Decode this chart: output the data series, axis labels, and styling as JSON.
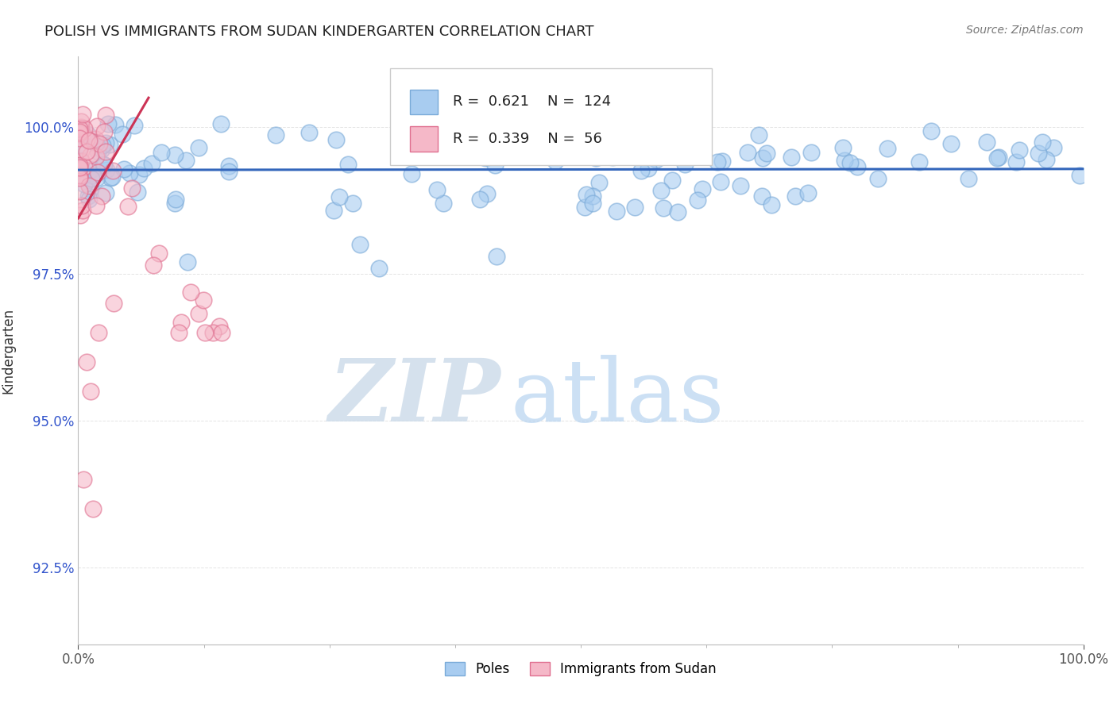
{
  "title": "POLISH VS IMMIGRANTS FROM SUDAN KINDERGARTEN CORRELATION CHART",
  "source": "Source: ZipAtlas.com",
  "ylabel": "Kindergarten",
  "xlabel": "",
  "xlim": [
    0.0,
    100.0
  ],
  "ylim": [
    91.2,
    101.2
  ],
  "yticks": [
    92.5,
    95.0,
    97.5,
    100.0
  ],
  "blue_color": "#A8CCF0",
  "blue_edge_color": "#7AAAD8",
  "pink_color": "#F5B8C8",
  "pink_edge_color": "#E07090",
  "blue_line_color": "#3366BB",
  "pink_line_color": "#CC3355",
  "legend_blue_label": "Poles",
  "legend_pink_label": "Immigrants from Sudan",
  "blue_R": 0.621,
  "blue_N": 124,
  "pink_R": 0.339,
  "pink_N": 56,
  "watermark_zip": "ZIP",
  "watermark_atlas": "atlas",
  "ytick_color": "#3355CC",
  "grid_color": "#DDDDDD",
  "title_color": "#222222",
  "source_color": "#777777"
}
